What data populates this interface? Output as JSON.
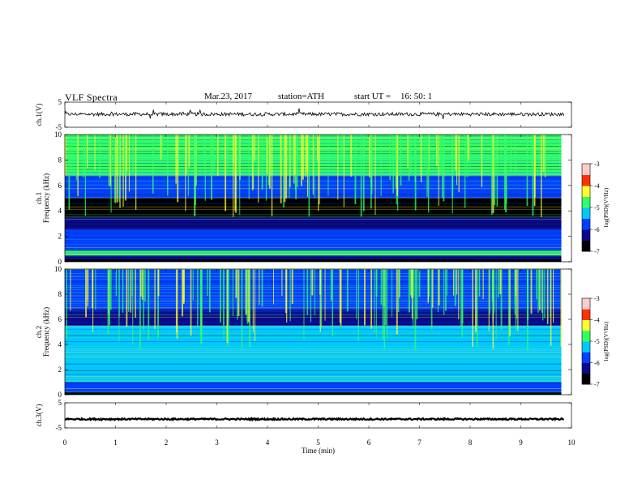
{
  "header": {
    "title": "VLF Spectra",
    "date": "Mar.23, 2017",
    "station": "station=ATH",
    "start_label": "start UT =",
    "start_time": "16: 50: 1"
  },
  "colorbar": {
    "label": "log(PSD)(V²/Hz)",
    "range": [
      -7,
      -3
    ],
    "ticks": [
      "-3",
      "-4",
      "-5",
      "-6",
      "-7"
    ]
  },
  "chart_data": [
    {
      "type": "line",
      "panel": "ch1-waveform",
      "ylabel": "ch.1(V)",
      "ylim": [
        -5,
        5
      ],
      "yticks": [
        "5",
        "-5"
      ],
      "xlim": [
        0,
        10
      ],
      "baseline": 0.2,
      "color": "#000000"
    },
    {
      "type": "heatmap",
      "panel": "ch1-spectrogram",
      "ylabel": "ch.1 Frequency (kHz)",
      "ylim": [
        0,
        10
      ],
      "yticks": [
        "0",
        "2",
        "4",
        "6",
        "8",
        "10"
      ],
      "xlim": [
        0,
        9.8
      ],
      "colorscale": [
        "#000000",
        "#0a0a8c",
        "#0040ff",
        "#00c8ff",
        "#33ff66",
        "#ffff33",
        "#ff3300",
        "#ffcccc"
      ],
      "zrange": [
        -7,
        -3
      ],
      "bands": [
        {
          "f_from": 0.0,
          "f_to": 0.2,
          "level": -7
        },
        {
          "f_from": 0.2,
          "f_to": 0.5,
          "level": -6.1
        },
        {
          "f_from": 0.5,
          "f_to": 0.9,
          "level": -4.6
        },
        {
          "f_from": 0.9,
          "f_to": 2.5,
          "level": -5.8
        },
        {
          "f_from": 2.5,
          "f_to": 3.5,
          "level": -6.2
        },
        {
          "f_from": 3.5,
          "f_to": 5.0,
          "level": -6.8
        },
        {
          "f_from": 5.0,
          "f_to": 6.8,
          "level": -5.9
        },
        {
          "f_from": 6.8,
          "f_to": 10.0,
          "level": -5.0
        }
      ]
    },
    {
      "type": "heatmap",
      "panel": "ch2-spectrogram",
      "ylabel": "ch.2 Frequency (kHz)",
      "ylim": [
        0,
        10
      ],
      "yticks": [
        "0",
        "2",
        "4",
        "6",
        "8",
        "10"
      ],
      "xlim": [
        0,
        9.8
      ],
      "colorscale": [
        "#000000",
        "#0a0a8c",
        "#0040ff",
        "#00c8ff",
        "#33ff66",
        "#ffff33",
        "#ff3300",
        "#ffcccc"
      ],
      "zrange": [
        -7,
        -3
      ],
      "bands": [
        {
          "f_from": 0.0,
          "f_to": 0.2,
          "level": -7
        },
        {
          "f_from": 0.2,
          "f_to": 1.0,
          "level": -5.7
        },
        {
          "f_from": 1.0,
          "f_to": 2.0,
          "level": -5.2
        },
        {
          "f_from": 2.0,
          "f_to": 3.5,
          "level": -5.5
        },
        {
          "f_from": 3.5,
          "f_to": 5.5,
          "level": -5.4
        },
        {
          "f_from": 5.5,
          "f_to": 6.8,
          "level": -6.2
        },
        {
          "f_from": 6.8,
          "f_to": 10.0,
          "level": -5.6
        }
      ]
    },
    {
      "type": "line",
      "panel": "ch3-waveform",
      "ylabel": "ch.3(V)",
      "ylim": [
        -5,
        5
      ],
      "yticks": [
        "5",
        "-5"
      ],
      "xlim": [
        0,
        10
      ],
      "baseline": -1.5,
      "color": "#000000"
    }
  ],
  "xaxis": {
    "label": "Time (min)",
    "range": [
      0,
      10
    ],
    "ticks": [
      "0",
      "1",
      "2",
      "3",
      "4",
      "5",
      "6",
      "7",
      "8",
      "9",
      "10"
    ]
  }
}
